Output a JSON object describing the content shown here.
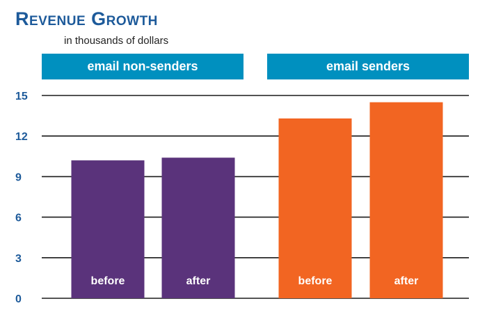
{
  "chart_data": {
    "type": "bar",
    "title": "Revenue Growth",
    "subtitle": "in thousands of dollars",
    "groups": [
      {
        "label": "email non-senders",
        "color": "#5a337b",
        "bars": [
          {
            "label": "before",
            "value": 10.2
          },
          {
            "label": "after",
            "value": 10.4
          }
        ]
      },
      {
        "label": "email senders",
        "color": "#f26522",
        "bars": [
          {
            "label": "before",
            "value": 13.3
          },
          {
            "label": "after",
            "value": 14.5
          }
        ]
      }
    ],
    "ylim": [
      0,
      15
    ],
    "yticks": [
      "0",
      "3",
      "6",
      "9",
      "12",
      "15"
    ],
    "grid": true,
    "colors": {
      "title": "#1d5a9a",
      "banner": "#0090bf",
      "tick_label": "#1d5a9a",
      "bar_label": "#ffffff",
      "grid": "#1a1a1a"
    }
  }
}
